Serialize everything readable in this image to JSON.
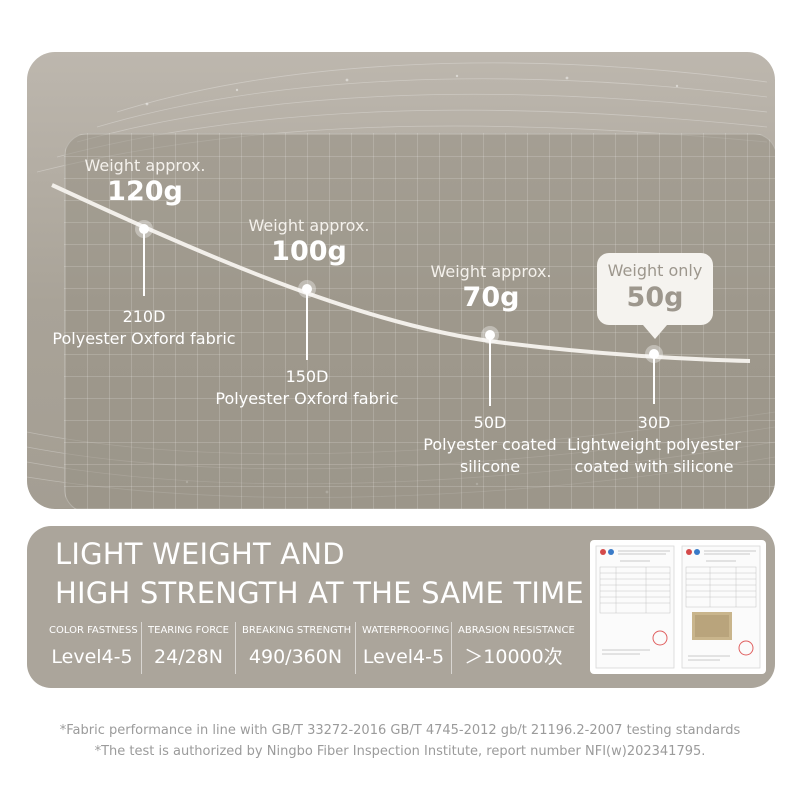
{
  "weights": [
    {
      "small": "Weight approx.",
      "big": "120g"
    },
    {
      "small": "Weight approx.",
      "big": "100g"
    },
    {
      "small": "Weight approx.",
      "big": "70g"
    }
  ],
  "callout": {
    "small": "Weight only",
    "big": "50g"
  },
  "fabrics": [
    {
      "line1": "210D",
      "line2": "Polyester Oxford fabric",
      "line3": ""
    },
    {
      "line1": "150D",
      "line2": "Polyester Oxford fabric",
      "line3": ""
    },
    {
      "line1": "50D",
      "line2": "Polyester coated",
      "line3": "silicone"
    },
    {
      "line1": "30D",
      "line2": "Lightweight polyester",
      "line3": "coated with silicone"
    }
  ],
  "headline": {
    "line1": "LIGHT WEIGHT AND",
    "line2": "HIGH STRENGTH AT THE SAME TIME"
  },
  "specs": [
    {
      "label": "COLOR FASTNESS",
      "value": "Level4-5"
    },
    {
      "label": "TEARING FORCE",
      "value": "24/28N"
    },
    {
      "label": "BREAKING STRENGTH",
      "value": "490/360N"
    },
    {
      "label": "WATERPROOFING",
      "value": "Level4-5"
    },
    {
      "label": "ABRASION RESISTANCE",
      "value": "＞10000次"
    }
  ],
  "footnotes": {
    "line1": "*Fabric performance in line with GB/T 33272-2016 GB/T 4745-2012 gb/t 21196.2-2007 testing standards",
    "line2": "*The test is authorized by Ningbo Fiber Inspection Institute, report number NFI(w)202341795."
  },
  "colors": {
    "panel": "#aba59b",
    "card": "#968f84",
    "callout_text": "#9d978d",
    "footnote": "#9b9b9b"
  }
}
